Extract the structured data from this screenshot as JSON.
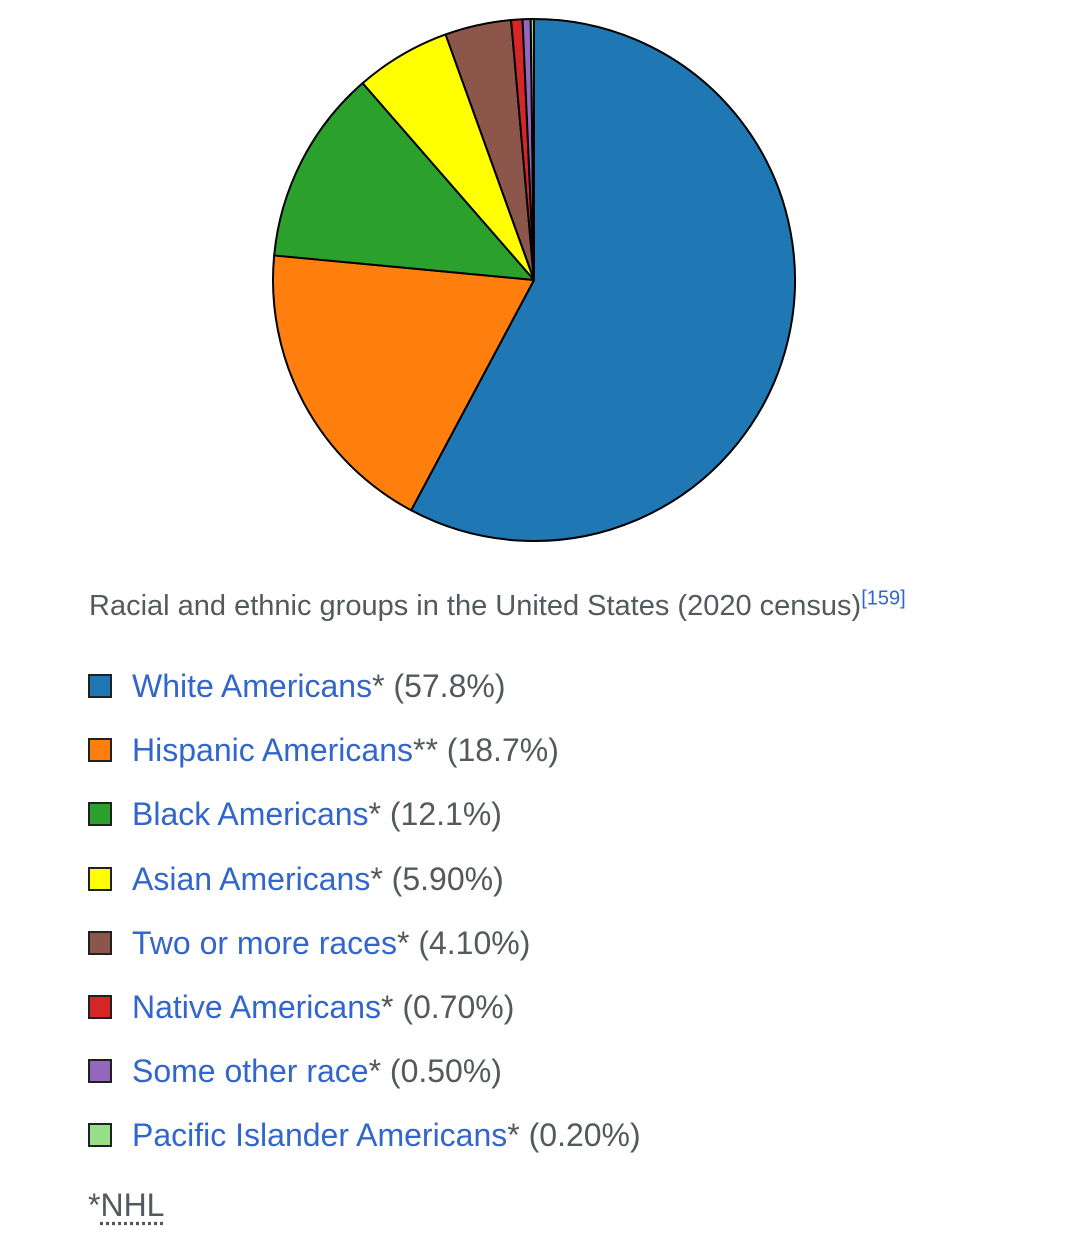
{
  "chart_data": {
    "type": "pie",
    "title": "Racial and ethnic groups in the United States (2020 census)",
    "title_ref": "[159]",
    "slices": [
      {
        "name": "White Americans",
        "mark": "*",
        "value": 57.8,
        "label": "(57.8%)",
        "color": "#1f77b4"
      },
      {
        "name": "Hispanic Americans",
        "mark": "**",
        "value": 18.7,
        "label": "(18.7%)",
        "color": "#ff7f0e"
      },
      {
        "name": "Black Americans",
        "mark": "*",
        "value": 12.1,
        "label": "(12.1%)",
        "color": "#2ca02c"
      },
      {
        "name": "Asian Americans",
        "mark": "*",
        "value": 5.9,
        "label": "(5.90%)",
        "color": "#ffff00"
      },
      {
        "name": "Two or more races",
        "mark": "*",
        "value": 4.1,
        "label": "(4.10%)",
        "color": "#8c564b"
      },
      {
        "name": "Native Americans",
        "mark": "*",
        "value": 0.7,
        "label": "(0.70%)",
        "color": "#d62728"
      },
      {
        "name": "Some other race",
        "mark": "*",
        "value": 0.5,
        "label": "(0.50%)",
        "color": "#9467bd"
      },
      {
        "name": "Pacific Islander Americans",
        "mark": "*",
        "value": 0.2,
        "label": "(0.20%)",
        "color": "#98df8a"
      }
    ],
    "legend_position": "bottom",
    "slice_border_color": "#000000"
  },
  "footnote": {
    "prefix": "*",
    "abbr": "NHL"
  },
  "colors": {
    "text": "#54595d",
    "link": "#3366cc"
  }
}
